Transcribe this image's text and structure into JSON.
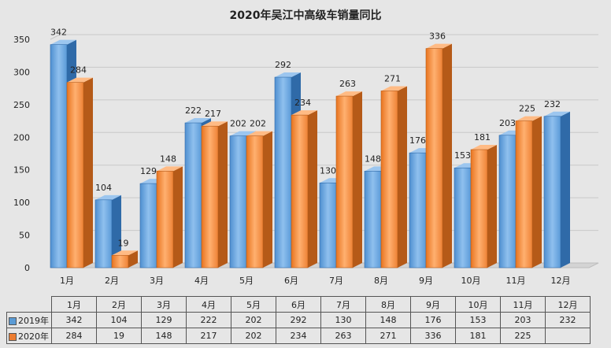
{
  "chart_data": {
    "type": "bar",
    "title": "2020年吴江中高级车销量同比",
    "categories": [
      "1月",
      "2月",
      "3月",
      "4月",
      "5月",
      "6月",
      "7月",
      "8月",
      "9月",
      "10月",
      "11月",
      "12月"
    ],
    "series": [
      {
        "name": "2019年",
        "values": [
          342,
          104,
          129,
          222,
          202,
          292,
          130,
          148,
          176,
          153,
          203,
          232
        ],
        "color": "#5b9bd5"
      },
      {
        "name": "2020年",
        "values": [
          284,
          19,
          148,
          217,
          202,
          234,
          263,
          271,
          336,
          181,
          225,
          null
        ],
        "color": "#ed7d31"
      }
    ],
    "y_ticks": [
      0,
      50,
      100,
      150,
      200,
      250,
      300,
      350
    ],
    "ylim": [
      0,
      350
    ],
    "grid": true,
    "legend": "data-table"
  }
}
